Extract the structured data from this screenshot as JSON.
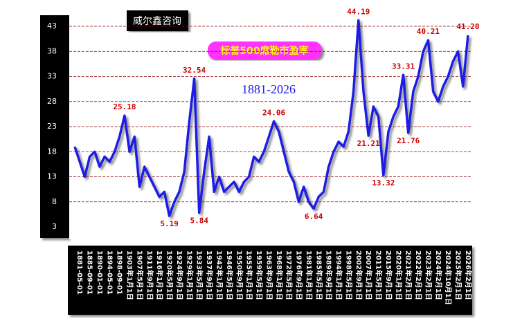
{
  "chart_data": {
    "type": "line",
    "title": "标普500席勒市盈率",
    "subtitle": "1881-2026",
    "source": "威尔鑫咨询",
    "ylim": [
      3,
      43
    ],
    "yticks": [
      3,
      8,
      13,
      18,
      23,
      28,
      33,
      38,
      43
    ],
    "grid": true,
    "categories": [
      null,
      "1881-05-01",
      null,
      "1885-09-01",
      null,
      "1890-01-01",
      null,
      "1894-05-01",
      null,
      "1898-09-01",
      null,
      "1903年1月1日",
      null,
      "1907年5月1日",
      null,
      "1911年9月1日",
      null,
      "1916年1月1日",
      null,
      "1920年5月1日",
      null,
      "1924年9月1日",
      null,
      "1929年1月1日",
      null,
      "1933年5月1日",
      null,
      "1937年9月1日",
      null,
      "1942年1月1日",
      null,
      "1946年5月1日",
      null,
      "1950年9月1日",
      null,
      "1955年1月1日",
      null,
      "1959年5月1日",
      null,
      "1963年9月1日",
      null,
      "1968年1月1日",
      null,
      "1972年5月1日",
      null,
      "1976年9月1日",
      null,
      "1981年1月1日",
      null,
      "1985年5月1日",
      null,
      "1989年9月1日",
      null,
      "1994年1月1日",
      null,
      "1998年5月1日",
      null,
      "2002年9月1日",
      null,
      "2007年1月1日",
      null,
      "2011年5月1日",
      null,
      "2015年9月1日",
      null,
      "2020年1月1日",
      null,
      "2021年2月1日",
      null,
      "2022年2月1日",
      null,
      "2023年2月1日",
      null,
      "2024年2月1日",
      null,
      "2024年10月1日",
      null,
      "2025年2月1日",
      null,
      "2026年2月1日"
    ],
    "series": [
      {
        "name": "标普500席勒市盈率",
        "color": "#1a1ae6",
        "values": [
          19,
          16,
          13,
          17,
          18,
          15,
          17,
          16,
          18,
          21,
          25.18,
          18,
          21,
          11,
          15,
          13,
          11,
          9,
          10,
          5.19,
          8,
          10,
          14,
          24,
          32.54,
          5.84,
          14,
          21,
          10,
          13,
          10,
          11,
          12,
          10,
          12,
          13,
          17,
          16,
          18,
          21,
          24.06,
          22,
          18,
          14,
          12,
          8,
          11,
          8,
          6.64,
          9,
          10,
          15,
          18,
          20,
          19,
          22,
          30,
          44.19,
          30,
          21.21,
          27,
          25,
          13.32,
          22,
          25,
          27,
          33.31,
          21.76,
          30,
          33,
          38,
          40.21,
          30,
          28,
          31,
          33,
          36,
          38,
          31,
          41.2
        ],
        "value_labels": [
          null,
          null,
          null,
          null,
          null,
          null,
          null,
          null,
          null,
          null,
          "25.18",
          null,
          null,
          null,
          null,
          null,
          null,
          null,
          null,
          "5.19",
          null,
          null,
          null,
          null,
          "32.54",
          "5.84",
          null,
          null,
          null,
          null,
          null,
          null,
          null,
          null,
          null,
          null,
          null,
          null,
          null,
          null,
          "24.06",
          null,
          null,
          null,
          null,
          null,
          null,
          null,
          "6.64",
          null,
          null,
          null,
          null,
          null,
          null,
          null,
          null,
          "44.19",
          null,
          "21.21",
          null,
          null,
          "13.32",
          null,
          null,
          null,
          "33.31",
          "21.76",
          null,
          null,
          null,
          "40.21",
          null,
          null,
          null,
          null,
          null,
          null,
          null,
          "41.20"
        ]
      }
    ]
  }
}
